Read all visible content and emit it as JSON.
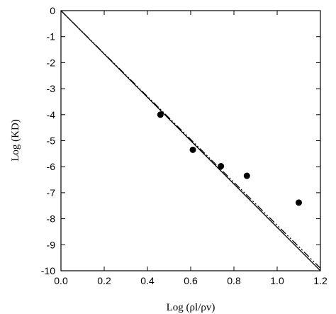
{
  "chart_data": {
    "type": "scatter",
    "xlabel": "Log (ρl/ρv)",
    "ylabel": "Log (KD)",
    "xlim": [
      0.0,
      1.2
    ],
    "ylim": [
      -10,
      0
    ],
    "x_ticks": [
      0.0,
      0.2,
      0.4,
      0.6,
      0.8,
      1.0,
      1.2
    ],
    "x_tick_labels": [
      "0.0",
      "0.2",
      "0.4",
      "0.6",
      "0.8",
      "1.0",
      "1.2"
    ],
    "y_ticks": [
      0,
      -1,
      -2,
      -3,
      -4,
      -5,
      -6,
      -7,
      -8,
      -9,
      -10
    ],
    "y_tick_labels": [
      "0",
      "-1",
      "-2",
      "-3",
      "-4",
      "-5",
      "-6",
      "-7",
      "-8",
      "-9",
      "-10"
    ],
    "grid": false,
    "series": [
      {
        "kind": "points",
        "marker": "filled-circle",
        "color": "#000000",
        "points": [
          {
            "x": 0.46,
            "y": -4.0
          },
          {
            "x": 0.61,
            "y": -5.35
          },
          {
            "x": 0.74,
            "y": -5.98
          },
          {
            "x": 0.86,
            "y": -6.35
          },
          {
            "x": 1.1,
            "y": -7.38
          }
        ]
      },
      {
        "kind": "line",
        "style": "solid",
        "color": "#000000",
        "points": [
          {
            "x": 0.0,
            "y": 0.0
          },
          {
            "x": 1.2,
            "y": -10.0
          }
        ]
      },
      {
        "kind": "line",
        "style": "dash-dot-dot",
        "color": "#000000",
        "points": [
          {
            "x": 0.0,
            "y": 0.0
          },
          {
            "x": 1.2,
            "y": -9.9
          }
        ]
      }
    ]
  }
}
